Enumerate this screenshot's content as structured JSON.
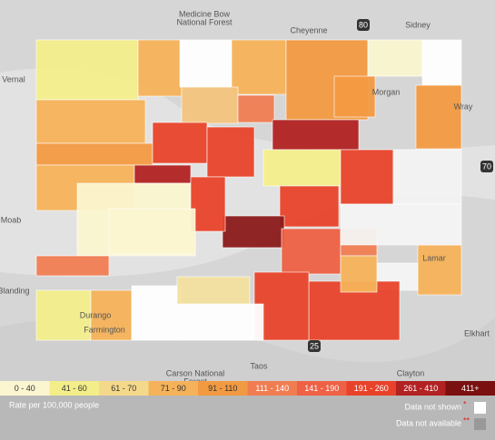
{
  "map": {
    "places": [
      "Medicine Bow",
      "National Forest",
      "Cheyenne",
      "Sidney",
      "Vernal",
      "Morgan",
      "Wray",
      "Moab",
      "Blanding",
      "Farmington",
      "Carson National",
      "Forest",
      "Taos",
      "Clayton",
      "Elkhart",
      "Lamar",
      "Durango"
    ],
    "shields": [
      "80",
      "70",
      "25"
    ],
    "counties": [
      "#f3ee8a",
      "#f5b25a",
      "#ffffff",
      "#f5b25a",
      "#f29a42",
      "#fbf6d0",
      "#ffffff",
      "#ffffff",
      "#f29a42",
      "#f29a42",
      "#f5b25a",
      "#f29a42",
      "#f5b25a",
      "#f3c47e",
      "#f07d52",
      "#b22222",
      "#e8432a",
      "#b22222",
      "#fbf6d0",
      "#e8432a",
      "#f3ee8a",
      "#e8432a",
      "#f2f2f2",
      "#e8432a",
      "#8b1a1a",
      "#e8432a",
      "#ee6145",
      "#f07d52",
      "#f5b25a",
      "#f4f4f4",
      "#f4f4f4",
      "#e8432a",
      "#e8432a",
      "#f07d52",
      "#f3ee8a",
      "#f5b25a",
      "#ffffff",
      "#ffffff",
      "#f3e0a0",
      "#f5b25a",
      "#fbf6d0"
    ],
    "legend": {
      "bins": [
        {
          "label": "0 - 40",
          "color": "#fbf6d0"
        },
        {
          "label": "41 - 60",
          "color": "#f3ee8a"
        },
        {
          "label": "61 - 70",
          "color": "#f5d98a"
        },
        {
          "label": "71 - 90",
          "color": "#f5b25a"
        },
        {
          "label": "91 - 110",
          "color": "#f29a42"
        },
        {
          "label": "111 - 140",
          "color": "#f07d52"
        },
        {
          "label": "141 - 190",
          "color": "#ee6145"
        },
        {
          "label": "191 - 260",
          "color": "#e8432a"
        },
        {
          "label": "261 - 410",
          "color": "#b22222"
        },
        {
          "label": "411+",
          "color": "#7a1010"
        }
      ],
      "caption": "Rate per 100,000 people",
      "not_shown": {
        "label": "Data not shown",
        "marker": "*",
        "color": "#ffffff"
      },
      "not_available": {
        "label": "Data not available",
        "marker": "**",
        "color": "#999999"
      }
    }
  }
}
